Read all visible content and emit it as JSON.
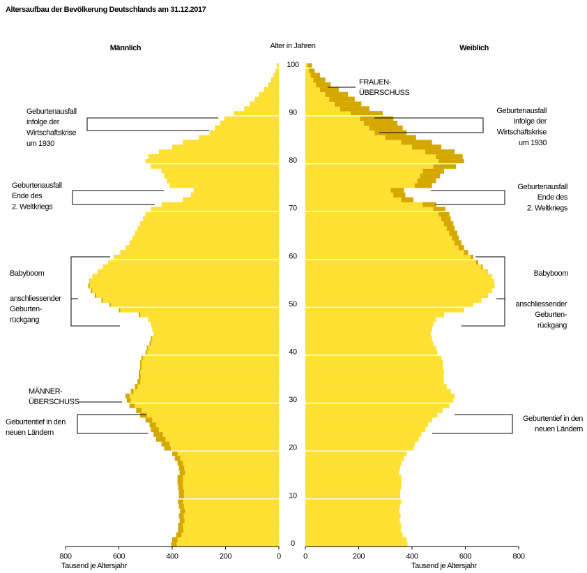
{
  "chart_data": {
    "type": "pyramid",
    "title": "Altersaufbau der Bevölkerung Deutschlands am 31.12.2017",
    "y_label": "Alter in Jahren",
    "x_label": "Tausend je Altersjahr",
    "surplus_color": "#d4a800",
    "y": [
      0,
      1,
      2,
      3,
      4,
      5,
      6,
      7,
      8,
      9,
      10,
      11,
      12,
      13,
      14,
      15,
      16,
      17,
      18,
      19,
      20,
      21,
      22,
      23,
      24,
      25,
      26,
      27,
      28,
      29,
      30,
      31,
      32,
      33,
      34,
      35,
      36,
      37,
      38,
      39,
      40,
      41,
      42,
      43,
      44,
      45,
      46,
      47,
      48,
      49,
      50,
      51,
      52,
      53,
      54,
      55,
      56,
      57,
      58,
      59,
      60,
      61,
      62,
      63,
      64,
      65,
      66,
      67,
      68,
      69,
      70,
      71,
      72,
      73,
      74,
      75,
      76,
      77,
      78,
      79,
      80,
      81,
      82,
      83,
      84,
      85,
      86,
      87,
      88,
      89,
      90,
      91,
      92,
      93,
      94,
      95,
      96,
      97,
      98,
      99,
      100
    ],
    "ylim": [
      -0.5,
      100.5
    ],
    "yticks": [
      0,
      10,
      20,
      30,
      40,
      50,
      60,
      70,
      80,
      90,
      100
    ],
    "xlim": [
      0,
      800
    ],
    "xticks": [
      0,
      200,
      400,
      600,
      800
    ],
    "series": [
      {
        "name": "Männlich",
        "color": "#ffe033",
        "values": [
          404,
          400,
          385,
          378,
          378,
          372,
          375,
          370,
          375,
          378,
          375,
          375,
          378,
          380,
          380,
          372,
          375,
          380,
          390,
          400,
          430,
          440,
          460,
          470,
          480,
          485,
          500,
          520,
          535,
          560,
          570,
          575,
          555,
          540,
          530,
          525,
          525,
          520,
          520,
          515,
          500,
          495,
          485,
          480,
          470,
          475,
          480,
          490,
          525,
          600,
          635,
          665,
          690,
          705,
          715,
          710,
          700,
          680,
          660,
          640,
          620,
          595,
          575,
          560,
          550,
          540,
          530,
          520,
          510,
          500,
          480,
          440,
          360,
          330,
          320,
          410,
          420,
          430,
          440,
          480,
          500,
          490,
          450,
          400,
          360,
          300,
          260,
          240,
          220,
          205,
          170,
          130,
          110,
          90,
          75,
          55,
          40,
          30,
          20,
          13,
          8
        ]
      },
      {
        "name": "Weiblich",
        "color": "#ffe033",
        "values": [
          383,
          380,
          365,
          358,
          360,
          354,
          357,
          352,
          356,
          360,
          356,
          356,
          360,
          360,
          360,
          352,
          355,
          360,
          370,
          380,
          405,
          410,
          425,
          435,
          450,
          460,
          475,
          495,
          515,
          540,
          555,
          560,
          545,
          530,
          520,
          518,
          520,
          515,
          515,
          510,
          495,
          490,
          480,
          475,
          470,
          475,
          480,
          490,
          520,
          595,
          630,
          660,
          685,
          700,
          710,
          708,
          700,
          683,
          665,
          648,
          630,
          610,
          595,
          585,
          575,
          570,
          560,
          555,
          545,
          540,
          525,
          490,
          405,
          375,
          370,
          475,
          490,
          505,
          520,
          565,
          595,
          590,
          560,
          510,
          475,
          415,
          380,
          365,
          345,
          330,
          290,
          240,
          210,
          185,
          160,
          125,
          95,
          75,
          55,
          35,
          25
        ]
      }
    ],
    "annotations": {
      "left": [
        {
          "lines": [
            "Geburtenausfall",
            "infolge der",
            "Wirtschaftskrise",
            "um 1930"
          ]
        },
        {
          "lines": [
            "Geburtenausfall",
            "Ende des",
            "2. Weltkriegs"
          ]
        },
        {
          "lines": [
            "Babyboom"
          ]
        },
        {
          "lines": [
            "anschliessender",
            "Geburten-",
            "rückgang"
          ]
        },
        {
          "lines": [
            "MÄNNER-",
            "ÜBERSCHUSS"
          ]
        },
        {
          "lines": [
            "Geburtentief in den",
            "neuen Ländern"
          ]
        }
      ],
      "right": [
        {
          "lines": [
            "FRAUEN-",
            "ÜBERSCHUSS"
          ]
        },
        {
          "lines": [
            "Geburtenausfall",
            "infolge der",
            "Wirtschaftskrise",
            "um 1930"
          ]
        },
        {
          "lines": [
            "Geburtenausfall",
            "Ende des",
            "2. Weltkriegs"
          ]
        },
        {
          "lines": [
            "Babyboom"
          ]
        },
        {
          "lines": [
            "anschliessender",
            "Geburten-",
            "rückgang"
          ]
        },
        {
          "lines": [
            "Geburtentief in den",
            "neuen Ländern"
          ]
        }
      ]
    }
  }
}
